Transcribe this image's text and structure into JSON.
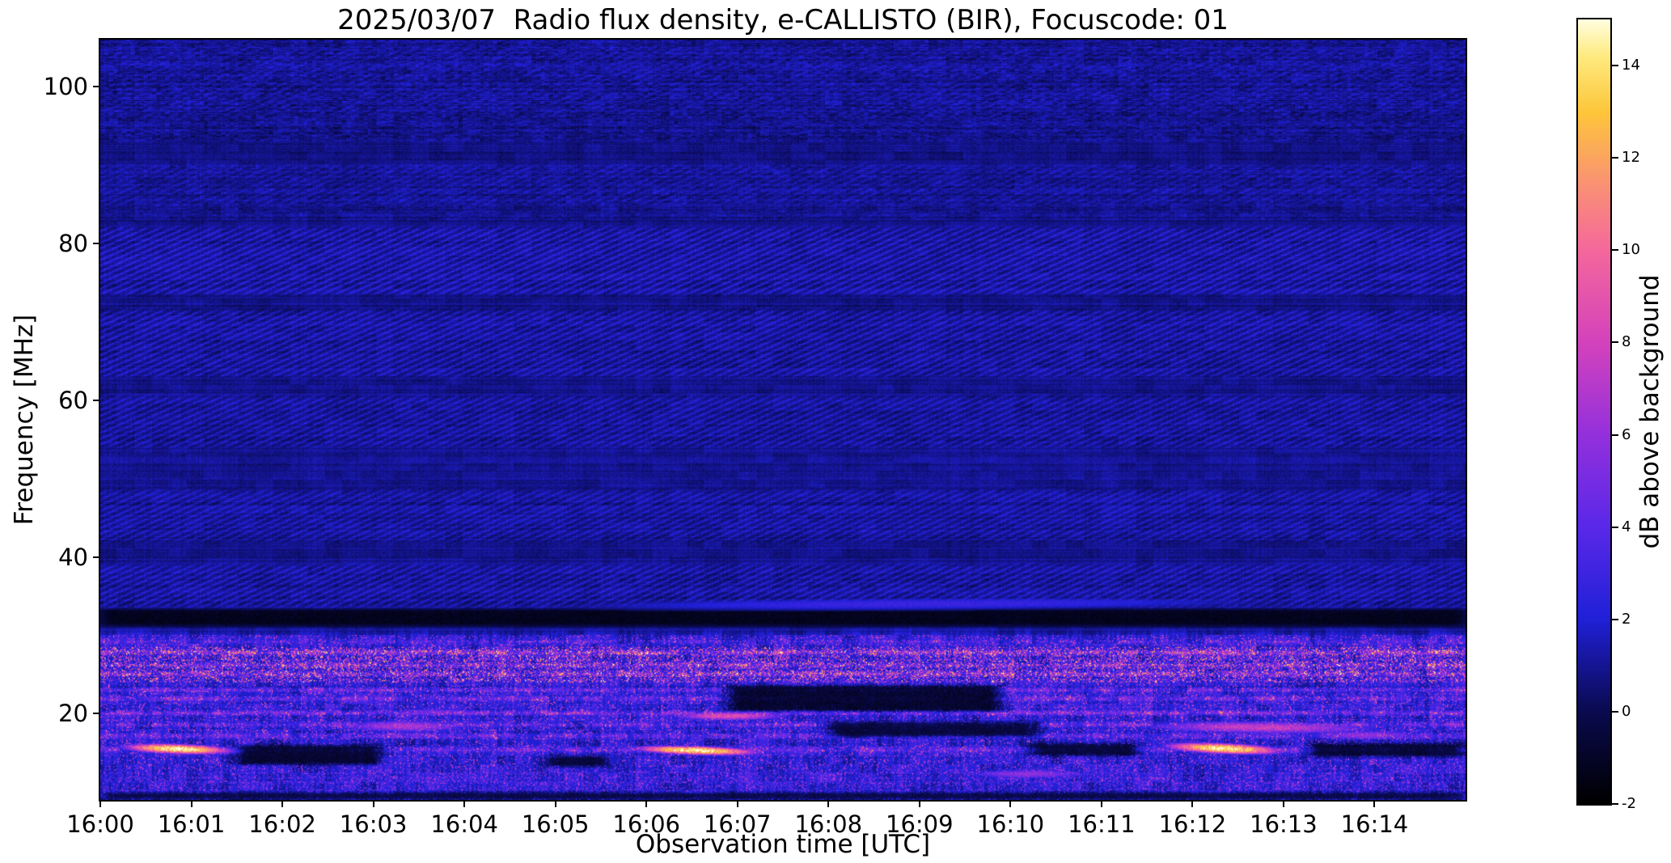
{
  "chart_data": {
    "type": "heatmap",
    "title": "2025/03/07  Radio flux density, e-CALLISTO (BIR), Focuscode: 01",
    "xlabel": "Observation time [UTC]",
    "ylabel": "Frequency [MHz]",
    "colorbar_label": "dB above background",
    "x_tick_labels": [
      "16:00",
      "16:01",
      "16:02",
      "16:03",
      "16:04",
      "16:05",
      "16:06",
      "16:07",
      "16:08",
      "16:09",
      "16:10",
      "16:11",
      "16:12",
      "16:13",
      "16:14"
    ],
    "x_range_minutes": [
      0,
      15
    ],
    "y_range_mhz": [
      9,
      106
    ],
    "y_ticks_mhz": [
      20,
      40,
      60,
      80,
      100
    ],
    "value_range_db": [
      -2,
      15
    ],
    "colorbar_ticks_db": [
      -2,
      0,
      2,
      4,
      6,
      8,
      10,
      12,
      14
    ],
    "colormap_stops": [
      {
        "db": -2.0,
        "hex": "#000000"
      },
      {
        "db": 0.0,
        "hex": "#0a0a50"
      },
      {
        "db": 2.0,
        "hex": "#2020d8"
      },
      {
        "db": 4.0,
        "hex": "#5a28e8"
      },
      {
        "db": 6.0,
        "hex": "#9430dc"
      },
      {
        "db": 8.0,
        "hex": "#d442bc"
      },
      {
        "db": 10.0,
        "hex": "#f4689c"
      },
      {
        "db": 11.5,
        "hex": "#fa9472"
      },
      {
        "db": 13.0,
        "hex": "#fdc63a"
      },
      {
        "db": 14.2,
        "hex": "#feea80"
      },
      {
        "db": 15.0,
        "hex": "#ffffe0"
      }
    ],
    "features": {
      "background": {
        "base_db": 0.85,
        "noise_db": 0.7
      },
      "diagonal_interference_bands": [
        {
          "f": [
            73.5,
            82.0
          ],
          "amp": 1.7
        },
        {
          "f": [
            63.0,
            71.5
          ],
          "amp": 1.5
        },
        {
          "f": [
            54.0,
            60.5
          ],
          "amp": 1.3
        },
        {
          "f": [
            42.0,
            48.5
          ],
          "amp": 1.2
        },
        {
          "f": [
            33.6,
            39.0
          ],
          "amp": 1.4
        },
        {
          "f": [
            85.0,
            90.0
          ],
          "amp": 0.7
        },
        {
          "f": [
            96.0,
            105.0
          ],
          "amp": 0.5
        }
      ],
      "emission_region_below_mhz": 30.5,
      "spectral_lines": [
        {
          "f": 29.2,
          "amp": 1.6
        },
        {
          "f": 27.8,
          "amp": 3.2
        },
        {
          "f": 26.2,
          "amp": 2.4
        },
        {
          "f": 25.1,
          "amp": 3.0
        },
        {
          "f": 23.0,
          "amp": 2.0
        },
        {
          "f": 21.9,
          "amp": 2.2
        },
        {
          "f": 20.1,
          "amp": 2.8
        },
        {
          "f": 18.6,
          "amp": 2.4
        },
        {
          "f": 17.2,
          "amp": 2.0
        },
        {
          "f": 15.4,
          "amp": 2.4
        }
      ],
      "speckle_regions": [
        {
          "f": [
            13.0,
            30.0
          ],
          "t": [
            0,
            15
          ],
          "density": 0.16,
          "amp": [
            1.5,
            6.5
          ]
        },
        {
          "f": [
            24.0,
            28.5
          ],
          "t": [
            0,
            15
          ],
          "density": 0.28,
          "amp": [
            2.0,
            8.0
          ]
        },
        {
          "f": [
            9.0,
            13.0
          ],
          "t": [
            0,
            15
          ],
          "density": 0.22,
          "amp": [
            1.5,
            5.0
          ]
        }
      ],
      "bright_bursts": [
        {
          "t": [
            0.1,
            1.6
          ],
          "f": [
            14.7,
            16.3
          ],
          "peak": 15.0,
          "tilt": -0.3
        },
        {
          "t": [
            5.7,
            7.4
          ],
          "f": [
            14.6,
            16.0
          ],
          "peak": 15.0,
          "tilt": -0.3
        },
        {
          "t": [
            11.55,
            13.15
          ],
          "f": [
            14.7,
            16.4
          ],
          "peak": 15.0,
          "tilt": -0.4
        },
        {
          "t": [
            6.15,
            7.65
          ],
          "f": [
            19.0,
            20.4
          ],
          "peak": 9.0,
          "tilt": 0.0
        },
        {
          "t": [
            2.5,
            4.2
          ],
          "f": [
            17.5,
            19.3
          ],
          "peak": 7.0,
          "tilt": 0.0
        },
        {
          "t": [
            11.2,
            14.3
          ],
          "f": [
            17.3,
            19.2
          ],
          "peak": 8.0,
          "tilt": -0.2
        },
        {
          "t": [
            13.1,
            14.7
          ],
          "f": [
            16.5,
            18.0
          ],
          "peak": 6.0,
          "tilt": 0.0
        },
        {
          "t": [
            9.4,
            11.0
          ],
          "f": [
            11.6,
            13.0
          ],
          "peak": 6.0,
          "tilt": 0.0
        },
        {
          "t": [
            3.0,
            4.4
          ],
          "f": [
            19.6,
            20.8
          ],
          "peak": 5.0,
          "tilt": 0.0
        },
        {
          "t": [
            4.4,
            13.6
          ],
          "f": [
            33.1,
            34.9
          ],
          "peak": 3.1,
          "tilt": 0.3
        }
      ],
      "dark_features": [
        {
          "t": [
            0.0,
            15.0
          ],
          "f": [
            31.2,
            33.3
          ],
          "db": -1.6
        },
        {
          "t": [
            1.5,
            3.1
          ],
          "f": [
            13.5,
            16.0
          ],
          "db": -1.3
        },
        {
          "t": [
            6.9,
            9.9
          ],
          "f": [
            20.3,
            23.6
          ],
          "db": -1.4
        },
        {
          "t": [
            8.0,
            10.3
          ],
          "f": [
            17.0,
            19.0
          ],
          "db": -1.0
        },
        {
          "t": [
            13.3,
            15.0
          ],
          "f": [
            14.5,
            16.2
          ],
          "db": -1.2
        },
        {
          "t": [
            4.9,
            5.6
          ],
          "f": [
            13.2,
            14.6
          ],
          "db": -1.0
        },
        {
          "t": [
            10.2,
            11.4
          ],
          "f": [
            14.6,
            16.2
          ],
          "db": -1.1
        },
        {
          "t": [
            0.0,
            15.0
          ],
          "f": [
            9.0,
            10.0
          ],
          "db": -0.6
        }
      ]
    }
  }
}
